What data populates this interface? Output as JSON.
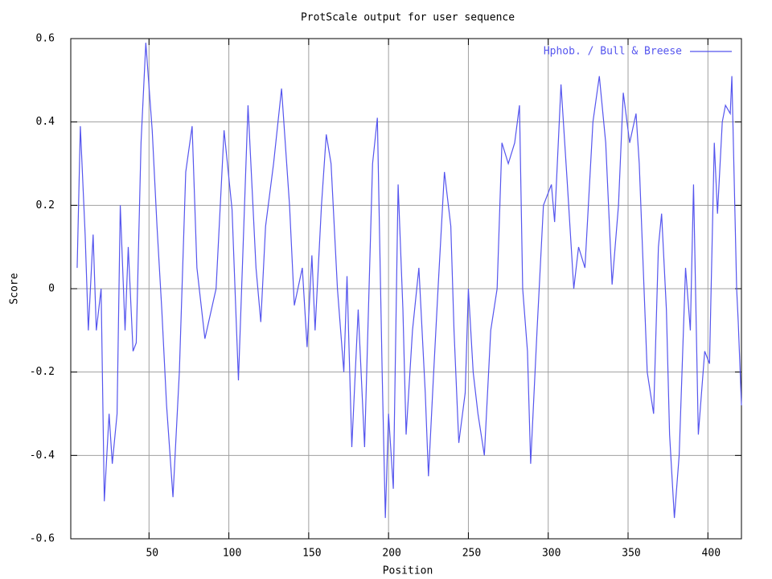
{
  "chart_data": {
    "type": "line",
    "title": "ProtScale output for user sequence",
    "x_label": "Position",
    "y_label": "Score",
    "x": [
      5,
      7,
      10,
      12,
      15,
      17,
      20,
      22,
      25,
      27,
      30,
      32,
      35,
      37,
      40,
      42,
      45,
      48,
      52,
      55,
      58,
      61,
      65,
      69,
      73,
      77,
      80,
      85,
      92,
      97,
      102,
      106,
      112,
      117,
      120,
      123,
      128,
      133,
      138,
      141,
      146,
      149,
      152,
      154,
      158,
      161,
      164,
      168,
      172,
      174,
      177,
      181,
      185,
      190,
      193,
      196,
      198,
      200,
      203,
      206,
      209,
      211,
      215,
      219,
      223,
      225,
      228,
      231,
      235,
      239,
      241,
      244,
      248,
      250,
      253,
      256,
      260,
      264,
      268,
      271,
      275,
      279,
      282,
      284,
      287,
      289,
      293,
      297,
      302,
      304,
      308,
      312,
      316,
      319,
      323,
      328,
      332,
      336,
      340,
      344,
      347,
      351,
      355,
      357,
      360,
      362,
      366,
      369,
      371,
      374,
      376,
      379,
      382,
      386,
      389,
      391,
      394,
      398,
      401,
      404,
      406,
      409,
      411,
      414,
      415,
      418,
      419,
      421
    ],
    "series": [
      {
        "name": "Hphob. / Bull & Breese",
        "color": "#5555ee",
        "values": [
          0.05,
          0.39,
          0.13,
          -0.1,
          0.13,
          -0.1,
          0.0,
          -0.51,
          -0.3,
          -0.42,
          -0.3,
          0.2,
          -0.1,
          0.1,
          -0.15,
          -0.13,
          0.35,
          0.59,
          0.38,
          0.15,
          -0.05,
          -0.28,
          -0.5,
          -0.2,
          0.28,
          0.39,
          0.05,
          -0.12,
          0.0,
          0.38,
          0.19,
          -0.22,
          0.44,
          0.05,
          -0.08,
          0.15,
          0.3,
          0.48,
          0.2,
          -0.04,
          0.05,
          -0.14,
          0.08,
          -0.1,
          0.2,
          0.37,
          0.3,
          0.0,
          -0.2,
          0.03,
          -0.38,
          -0.05,
          -0.38,
          0.3,
          0.41,
          -0.2,
          -0.55,
          -0.3,
          -0.48,
          0.25,
          -0.05,
          -0.35,
          -0.1,
          0.05,
          -0.25,
          -0.45,
          -0.22,
          0.0,
          0.28,
          0.15,
          -0.1,
          -0.37,
          -0.25,
          0.0,
          -0.2,
          -0.3,
          -0.4,
          -0.1,
          0.0,
          0.35,
          0.3,
          0.35,
          0.44,
          0.0,
          -0.15,
          -0.42,
          -0.1,
          0.2,
          0.25,
          0.16,
          0.49,
          0.25,
          0.0,
          0.1,
          0.05,
          0.4,
          0.51,
          0.35,
          0.01,
          0.2,
          0.47,
          0.35,
          0.42,
          0.3,
          0.0,
          -0.2,
          -0.3,
          0.1,
          0.18,
          -0.05,
          -0.35,
          -0.55,
          -0.4,
          0.05,
          -0.1,
          0.25,
          -0.35,
          -0.15,
          -0.18,
          0.35,
          0.18,
          0.4,
          0.44,
          0.42,
          0.51,
          0.0,
          -0.08,
          -0.28
        ]
      }
    ],
    "xlim": [
      1,
      421
    ],
    "ylim": [
      -0.6,
      0.6
    ],
    "xticks": [
      50,
      100,
      150,
      200,
      250,
      300,
      350,
      400
    ],
    "yticks": [
      -0.6,
      -0.4,
      -0.2,
      0,
      0.2,
      0.4,
      0.6
    ],
    "grid": true,
    "legend": "upper right"
  }
}
